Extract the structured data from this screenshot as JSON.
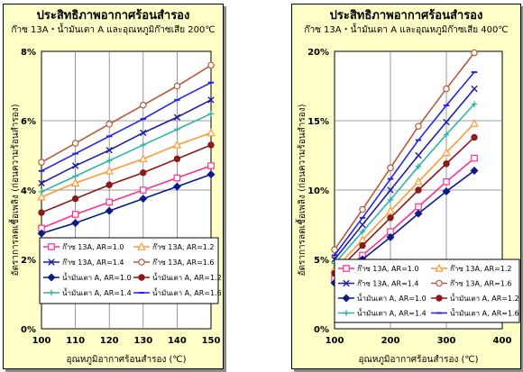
{
  "chart_data": [
    {
      "type": "line",
      "title": "ประสิทธิภาพอากาศร้อนสำรอง",
      "subtitle": "ก๊าซ 13A・น้ำมันเตา A และอุณหภูมิก๊าซเสีย 200℃",
      "xlabel": "อุณหภูมิอากาศร้อนสำรอง (℃)",
      "ylabel": "อัตราการลดเชื้อเพลิง (ก่อนความร้อนสำรอง)",
      "xlim": [
        100,
        150
      ],
      "ylim": [
        0,
        8
      ],
      "x_ticks": [
        "100",
        "110",
        "120",
        "130",
        "140",
        "150"
      ],
      "y_ticks": [
        "0%",
        "2%",
        "4%",
        "6%",
        "8%"
      ],
      "grid": true,
      "legend_position": "bottom",
      "x": [
        100,
        110,
        120,
        130,
        140,
        150
      ],
      "series": [
        {
          "name": "ก๊าซ 13A, AR=1.0",
          "color": "#ff2f8f",
          "marker": "square",
          "values": [
            2.9,
            3.3,
            3.65,
            4.0,
            4.35,
            4.7
          ]
        },
        {
          "name": "ก๊าซ 13A, AR=1.2",
          "color": "#ff9933",
          "marker": "triangle",
          "values": [
            3.8,
            4.2,
            4.55,
            4.9,
            5.3,
            5.65
          ]
        },
        {
          "name": "ก๊าซ 13A, AR=1.4",
          "color": "#1f1fa0",
          "marker": "x",
          "values": [
            4.2,
            4.7,
            5.15,
            5.65,
            6.1,
            6.6
          ]
        },
        {
          "name": "ก๊าซ 13A, AR=1.6",
          "color": "#b35a3a",
          "marker": "circle-open",
          "values": [
            4.8,
            5.35,
            5.9,
            6.45,
            7.0,
            7.6
          ]
        },
        {
          "name": "น้ำมันเตา A, AR=1.0",
          "color": "#0a1a8c",
          "marker": "diamond",
          "values": [
            2.75,
            3.05,
            3.4,
            3.75,
            4.1,
            4.45
          ]
        },
        {
          "name": "น้ำมันเตา A, AR=1.2",
          "color": "#8b1a1a",
          "marker": "circle",
          "values": [
            3.35,
            3.75,
            4.15,
            4.5,
            4.9,
            5.3
          ]
        },
        {
          "name": "น้ำมันเตา A, AR=1.4",
          "color": "#33b3a3",
          "marker": "plus",
          "values": [
            3.95,
            4.4,
            4.85,
            5.3,
            5.75,
            6.2
          ]
        },
        {
          "name": "น้ำมันเตา A, AR=1.6",
          "color": "#2222ee",
          "marker": "dash",
          "values": [
            4.55,
            5.05,
            5.55,
            6.05,
            6.6,
            7.1
          ]
        }
      ]
    },
    {
      "type": "line",
      "title": "ประสิทธิภาพอากาศร้อนสำรอง",
      "subtitle": "ก๊าซ 13A・น้ำมันเตา A และอุณหภูมิก๊าซเสีย 400℃",
      "xlabel": "อุณหภูมิอากาศร้อนสำรอง (℃)",
      "ylabel": "อัตราการลดเชื้อเพลิง (ก่อนความร้อนสำรอง)",
      "xlim": [
        100,
        400
      ],
      "ylim": [
        0,
        20
      ],
      "x_ticks": [
        "100",
        "200",
        "300",
        "400"
      ],
      "y_ticks": [
        "0%",
        "5%",
        "10%",
        "15%",
        "20%"
      ],
      "grid": true,
      "legend_position": "bottom",
      "x": [
        100,
        150,
        200,
        250,
        300,
        350
      ],
      "series": [
        {
          "name": "ก๊าซ 13A, AR=1.0",
          "color": "#ff2f8f",
          "marker": "square",
          "values": [
            3.6,
            5.3,
            7.0,
            8.8,
            10.6,
            12.3
          ]
        },
        {
          "name": "ก๊าซ 13A, AR=1.2",
          "color": "#ff9933",
          "marker": "triangle",
          "values": [
            4.3,
            6.4,
            8.5,
            10.6,
            12.7,
            14.8
          ]
        },
        {
          "name": "ก๊าซ 13A, AR=1.4",
          "color": "#1f1fa0",
          "marker": "x",
          "values": [
            5.0,
            7.5,
            10.0,
            12.5,
            14.9,
            17.3
          ]
        },
        {
          "name": "ก๊าซ 13A, AR=1.6",
          "color": "#b35a3a",
          "marker": "circle-open",
          "values": [
            5.7,
            8.6,
            11.6,
            14.6,
            17.3,
            19.9
          ]
        },
        {
          "name": "น้ำมันเตา A, AR=1.0",
          "color": "#0a1a8c",
          "marker": "diamond",
          "values": [
            3.3,
            5.0,
            6.6,
            8.3,
            9.9,
            11.4
          ]
        },
        {
          "name": "น้ำมันเตา A, AR=1.2",
          "color": "#8b1a1a",
          "marker": "circle",
          "values": [
            4.0,
            6.0,
            8.0,
            10.0,
            11.9,
            13.8
          ]
        },
        {
          "name": "น้ำมันเตา A, AR=1.4",
          "color": "#33b3a3",
          "marker": "plus",
          "values": [
            4.7,
            7.0,
            9.3,
            11.7,
            14.0,
            16.2
          ]
        },
        {
          "name": "น้ำมันเตา A, AR=1.6",
          "color": "#2222ee",
          "marker": "dash",
          "values": [
            5.3,
            8.0,
            10.8,
            13.6,
            16.1,
            18.5
          ]
        }
      ]
    }
  ]
}
